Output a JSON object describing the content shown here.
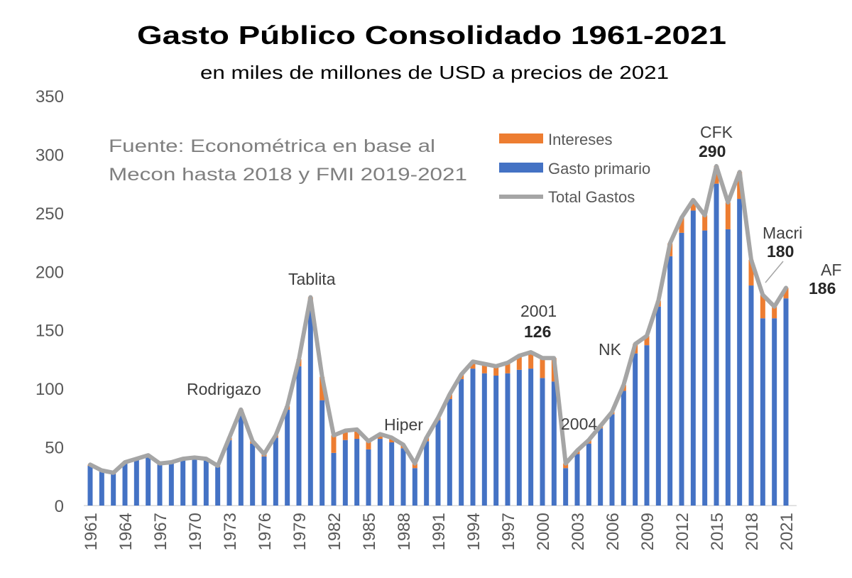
{
  "chart_data": {
    "type": "bar",
    "stacked": true,
    "title": "Gasto Público Consolidado 1961-2021",
    "subtitle": "en miles de millones de USD a precios de 2021",
    "source_note": [
      "Fuente: Econométrica en base al",
      "Mecon hasta 2018 y FMI 2019-2021"
    ],
    "xlabel": "",
    "ylabel": "",
    "ylim": [
      0,
      350
    ],
    "yticks": [
      0,
      50,
      100,
      150,
      200,
      250,
      300,
      350
    ],
    "xtick_labels": [
      "1961",
      "1964",
      "1967",
      "1970",
      "1973",
      "1976",
      "1979",
      "1982",
      "1985",
      "1988",
      "1991",
      "1994",
      "1997",
      "2000",
      "2003",
      "2006",
      "2009",
      "2012",
      "2015",
      "2018",
      "2021"
    ],
    "legend": {
      "placement": "top-center",
      "entries": [
        "Intereses",
        "Gasto primario",
        "Total Gastos"
      ]
    },
    "colors": {
      "Intereses": "#ed7d31",
      "Gasto primario": "#4472c4",
      "Total Gastos": "#a5a5a5"
    },
    "years": [
      1961,
      1962,
      1963,
      1964,
      1965,
      1966,
      1967,
      1968,
      1969,
      1970,
      1971,
      1972,
      1973,
      1974,
      1975,
      1976,
      1977,
      1978,
      1979,
      1980,
      1981,
      1982,
      1983,
      1984,
      1985,
      1986,
      1987,
      1988,
      1989,
      1990,
      1991,
      1992,
      1993,
      1994,
      1995,
      1996,
      1997,
      1998,
      1999,
      2000,
      2001,
      2002,
      2003,
      2004,
      2005,
      2006,
      2007,
      2008,
      2009,
      2010,
      2011,
      2012,
      2013,
      2014,
      2015,
      2016,
      2017,
      2018,
      2019,
      2020,
      2021
    ],
    "series": [
      {
        "name": "Gasto primario",
        "kind": "bar",
        "values": [
          34,
          29,
          27,
          36,
          39,
          42,
          35,
          36,
          39,
          40,
          39,
          33,
          56,
          80,
          53,
          42,
          58,
          82,
          119,
          172,
          90,
          45,
          56,
          57,
          48,
          57,
          54,
          49,
          32,
          55,
          73,
          91,
          108,
          117,
          113,
          111,
          113,
          116,
          117,
          109,
          106,
          32,
          44,
          53,
          66,
          78,
          98,
          130,
          137,
          170,
          213,
          233,
          252,
          235,
          275,
          236,
          262,
          188,
          160,
          160,
          177
        ]
      },
      {
        "name": "Intereses",
        "kind": "bar",
        "values": [
          1,
          1,
          1,
          1,
          1,
          1,
          1,
          1,
          1,
          1,
          1,
          1,
          2,
          2,
          2,
          2,
          2,
          3,
          6,
          6,
          20,
          15,
          8,
          8,
          7,
          4,
          4,
          3,
          4,
          3,
          2,
          4,
          4,
          6,
          8,
          8,
          9,
          12,
          14,
          17,
          20,
          4,
          3,
          3,
          2,
          2,
          5,
          8,
          8,
          5,
          11,
          13,
          9,
          13,
          15,
          23,
          23,
          22,
          20,
          10,
          9
        ]
      },
      {
        "name": "Total Gastos",
        "kind": "line",
        "values": [
          35,
          30,
          28,
          37,
          40,
          43,
          36,
          37,
          40,
          41,
          40,
          34,
          58,
          82,
          55,
          44,
          60,
          85,
          125,
          178,
          110,
          60,
          64,
          65,
          55,
          61,
          58,
          52,
          36,
          58,
          75,
          95,
          112,
          123,
          121,
          119,
          122,
          128,
          131,
          126,
          126,
          36,
          47,
          56,
          68,
          80,
          103,
          138,
          145,
          175,
          224,
          246,
          261,
          248,
          290,
          259,
          285,
          210,
          180,
          170,
          186
        ]
      }
    ],
    "annotations": [
      {
        "label": "Rodrigazo",
        "year": 1975
      },
      {
        "label": "Tablita",
        "year": 1980
      },
      {
        "label": "Hiper",
        "year": 1989
      },
      {
        "label": "2001",
        "value": "126"
      },
      {
        "label": "2004"
      },
      {
        "label": "NK"
      },
      {
        "label": "CFK",
        "value": "290"
      },
      {
        "label": "Macri",
        "value": "180"
      },
      {
        "label": "AF",
        "value": "186"
      }
    ]
  }
}
